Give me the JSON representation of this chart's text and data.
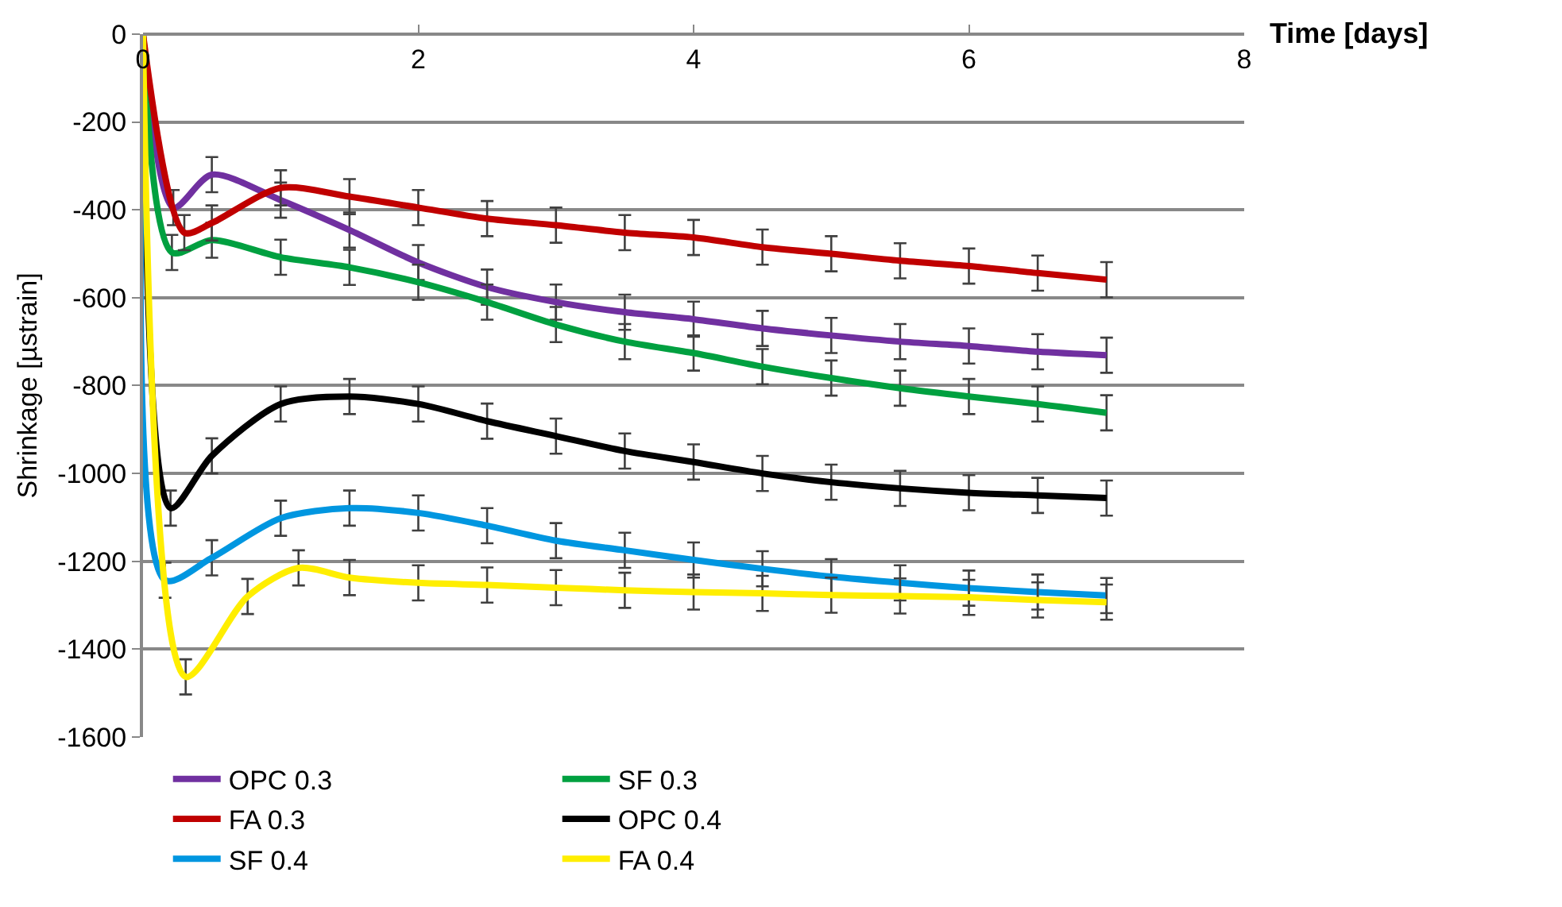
{
  "chart_data": {
    "type": "line",
    "xlabel": "Time [days]",
    "ylabel": "Shrinkage [µstrain]",
    "xlim": [
      0,
      8
    ],
    "xticks": [
      0,
      2,
      4,
      6,
      8
    ],
    "ylim": [
      -1600,
      0
    ],
    "yticks": [
      -1600,
      -1400,
      -1200,
      -1000,
      -800,
      -600,
      -400,
      -200,
      0
    ],
    "grid": "y",
    "legend": "bottom",
    "marker": "none",
    "line_style": "solid",
    "series": [
      {
        "name": "OPC 0.3",
        "color": "#7030a0",
        "x": [
          0,
          0.22,
          0.5,
          1,
          1.5,
          2,
          2.5,
          3,
          3.5,
          4,
          4.5,
          5,
          5.5,
          6,
          6.5,
          7
        ],
        "values": [
          0,
          -395,
          -320,
          -378,
          -446,
          -520,
          -576,
          -610,
          -633,
          -649,
          -670,
          -686,
          -700,
          -710,
          -723,
          -731
        ],
        "errors": [
          null,
          40,
          40,
          40,
          40,
          40,
          40,
          40,
          40,
          40,
          40,
          40,
          40,
          40,
          40,
          40
        ]
      },
      {
        "name": "SF 0.3",
        "color": "#00a040",
        "x": [
          0,
          0.21,
          0.5,
          1,
          1.5,
          2,
          2.5,
          3,
          3.5,
          4,
          4.5,
          5,
          5.5,
          6,
          6.5,
          7
        ],
        "values": [
          0,
          -497,
          -469,
          -508,
          -531,
          -565,
          -610,
          -661,
          -700,
          -726,
          -757,
          -783,
          -806,
          -825,
          -842,
          -862
        ],
        "errors": [
          null,
          40,
          40,
          40,
          40,
          40,
          40,
          40,
          40,
          40,
          40,
          40,
          40,
          40,
          40,
          40
        ]
      },
      {
        "name": "FA 0.3",
        "color": "#c00000",
        "x": [
          0,
          0.3,
          0.5,
          1,
          1.5,
          2,
          2.5,
          3,
          3.5,
          4,
          4.5,
          5,
          5.5,
          6,
          6.5,
          7
        ],
        "values": [
          0,
          -452,
          -430,
          -350,
          -370,
          -395,
          -420,
          -435,
          -452,
          -463,
          -485,
          -500,
          -516,
          -528,
          -544,
          -559
        ],
        "errors": [
          null,
          40,
          40,
          40,
          40,
          40,
          40,
          40,
          40,
          40,
          40,
          40,
          40,
          40,
          40,
          40
        ]
      },
      {
        "name": "OPC 0.4",
        "color": "#000000",
        "x": [
          0,
          0.2,
          0.5,
          1,
          1.5,
          2,
          2.5,
          3,
          3.5,
          4,
          4.5,
          5,
          5.5,
          6,
          6.5,
          7
        ],
        "values": [
          0,
          -1079,
          -960,
          -842,
          -825,
          -842,
          -881,
          -915,
          -949,
          -974,
          -1000,
          -1020,
          -1034,
          -1044,
          -1050,
          -1056
        ],
        "errors": [
          null,
          40,
          40,
          40,
          40,
          40,
          40,
          40,
          40,
          40,
          40,
          40,
          40,
          40,
          40,
          40
        ]
      },
      {
        "name": "SF 0.4",
        "color": "#0096e0",
        "x": [
          0,
          0.16,
          0.5,
          1,
          1.5,
          2,
          2.5,
          3,
          3.5,
          4,
          4.5,
          5,
          5.5,
          6,
          6.5,
          7
        ],
        "values": [
          0,
          -1243,
          -1192,
          -1102,
          -1079,
          -1090,
          -1119,
          -1153,
          -1175,
          -1197,
          -1217,
          -1235,
          -1249,
          -1261,
          -1270,
          -1278
        ],
        "errors": [
          null,
          40,
          40,
          40,
          40,
          40,
          40,
          40,
          40,
          40,
          40,
          40,
          40,
          40,
          40,
          40
        ]
      },
      {
        "name": "FA 0.4",
        "color": "#ffee00",
        "x": [
          0,
          0.31,
          0.76,
          1.13,
          1.5,
          2,
          2.5,
          3,
          3.5,
          4,
          4.5,
          5,
          5.5,
          6,
          6.5,
          7
        ],
        "values": [
          0,
          -1463,
          -1280,
          -1215,
          -1237,
          -1249,
          -1254,
          -1260,
          -1266,
          -1270,
          -1273,
          -1277,
          -1279,
          -1282,
          -1288,
          -1293
        ],
        "errors": [
          null,
          40,
          40,
          40,
          40,
          40,
          40,
          40,
          40,
          40,
          40,
          40,
          40,
          40,
          40,
          40
        ]
      }
    ]
  }
}
